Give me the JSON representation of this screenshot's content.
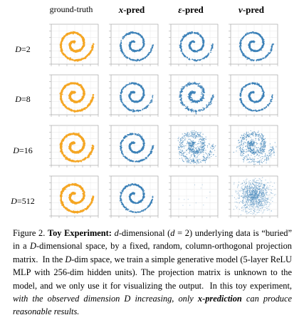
{
  "columns": [
    "ground-truth",
    "x-pred",
    "ε-pred",
    "v-pred"
  ],
  "rows": [
    "D=2",
    "D=8",
    "D=16",
    "D=512"
  ],
  "colors": {
    "ground_truth": "#f5a623",
    "pred": "#3b80b7"
  },
  "chart_data": {
    "type": "scatter",
    "grid": true,
    "note_axes": "small tick labels, unreadable",
    "panels": [
      {
        "row": "D=2",
        "col": "ground-truth",
        "pattern": "spiral-clean",
        "color": "orange"
      },
      {
        "row": "D=2",
        "col": "x-pred",
        "pattern": "spiral-clean",
        "color": "blue"
      },
      {
        "row": "D=2",
        "col": "ε-pred",
        "pattern": "spiral-clean",
        "color": "blue"
      },
      {
        "row": "D=2",
        "col": "v-pred",
        "pattern": "spiral-clean",
        "color": "blue"
      },
      {
        "row": "D=8",
        "col": "ground-truth",
        "pattern": "spiral-clean",
        "color": "orange"
      },
      {
        "row": "D=8",
        "col": "x-pred",
        "pattern": "spiral-clean",
        "color": "blue"
      },
      {
        "row": "D=8",
        "col": "ε-pred",
        "pattern": "spiral-slight-noise",
        "color": "blue"
      },
      {
        "row": "D=8",
        "col": "v-pred",
        "pattern": "spiral-clean",
        "color": "blue"
      },
      {
        "row": "D=16",
        "col": "ground-truth",
        "pattern": "spiral-clean",
        "color": "orange"
      },
      {
        "row": "D=16",
        "col": "x-pred",
        "pattern": "spiral-clean",
        "color": "blue"
      },
      {
        "row": "D=16",
        "col": "ε-pred",
        "pattern": "spiral-blurred",
        "color": "blue"
      },
      {
        "row": "D=16",
        "col": "v-pred",
        "pattern": "spiral-blurred",
        "color": "blue"
      },
      {
        "row": "D=512",
        "col": "ground-truth",
        "pattern": "spiral-clean",
        "color": "orange"
      },
      {
        "row": "D=512",
        "col": "x-pred",
        "pattern": "spiral-clean",
        "color": "blue"
      },
      {
        "row": "D=512",
        "col": "ε-pred",
        "pattern": "sparse-few-points",
        "color": "blue"
      },
      {
        "row": "D=512",
        "col": "v-pred",
        "pattern": "gaussian-cloud",
        "color": "blue"
      }
    ]
  },
  "caption": {
    "fig_label": "Figure 2.",
    "title": "Toy Experiment",
    "body_lines": [
      "d-dimensional (d = 2) underlying",
      "data is “buried” in a D-dimensional space, by a fixed, random,",
      "column-orthogonal projection matrix.  In the D-dim space, we",
      "train a simple generative model (5-layer ReLU MLP with 256-dim",
      "hidden units). The projection matrix is unknown to the model, and",
      "we only use it for visualizing the output.  In this toy experiment,",
      "with the observed dimension D increasing, only x-prediction can",
      "produce reasonable results."
    ]
  }
}
